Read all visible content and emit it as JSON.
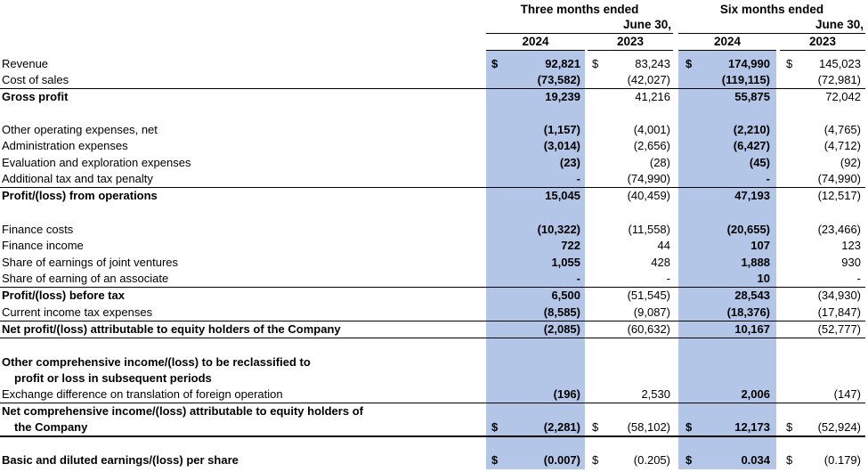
{
  "headers": {
    "three_months_line1": "Three months ended",
    "three_months_line2": "June 30,",
    "six_months_line1": "Six months ended",
    "six_months_line2": "June 30,",
    "years": [
      "2024",
      "2023",
      "2024",
      "2023"
    ]
  },
  "rows": {
    "revenue": {
      "label": "Revenue",
      "v": [
        "92,821",
        "83,243",
        "174,990",
        "145,023"
      ],
      "cur": [
        "$",
        "$",
        "$",
        "$"
      ]
    },
    "cost_of_sales": {
      "label": "Cost of sales",
      "v": [
        "(73,582)",
        "(42,027)",
        "(119,115)",
        "(72,981)"
      ]
    },
    "gross_profit": {
      "label": "Gross profit",
      "v": [
        "19,239",
        "41,216",
        "55,875",
        "72,042"
      ]
    },
    "other_opex": {
      "label": "Other operating expenses, net",
      "v": [
        "(1,157)",
        "(4,001)",
        "(2,210)",
        "(4,765)"
      ]
    },
    "admin": {
      "label": "Administration expenses",
      "v": [
        "(3,014)",
        "(2,656)",
        "(6,427)",
        "(4,712)"
      ]
    },
    "evaluation": {
      "label": "Evaluation and exploration expenses",
      "v": [
        "(23)",
        "(28)",
        "(45)",
        "(92)"
      ]
    },
    "additional_tax": {
      "label": "Additional tax and tax penalty",
      "v": [
        "-",
        "(74,990)",
        "-",
        "(74,990)"
      ]
    },
    "profit_ops": {
      "label": "Profit/(loss) from operations",
      "v": [
        "15,045",
        "(40,459)",
        "47,193",
        "(12,517)"
      ]
    },
    "finance_costs": {
      "label": "Finance costs",
      "v": [
        "(10,322)",
        "(11,558)",
        "(20,655)",
        "(23,466)"
      ]
    },
    "finance_income": {
      "label": "Finance income",
      "v": [
        "722",
        "44",
        "107",
        "123"
      ]
    },
    "jv_earnings": {
      "label": "Share of earnings of joint ventures",
      "v": [
        "1,055",
        "428",
        "1,888",
        "930"
      ]
    },
    "associate": {
      "label": "Share of earning of an associate",
      "v": [
        "-",
        "-",
        "10",
        "-"
      ]
    },
    "profit_before_tax": {
      "label": "Profit/(loss) before tax",
      "v": [
        "6,500",
        "(51,545)",
        "28,543",
        "(34,930)"
      ]
    },
    "current_tax": {
      "label": "Current income tax expenses",
      "v": [
        "(8,585)",
        "(9,087)",
        "(18,376)",
        "(17,847)"
      ]
    },
    "net_profit": {
      "label": "Net profit/(loss) attributable to equity holders of the Company",
      "v": [
        "(2,085)",
        "(60,632)",
        "10,167",
        "(52,777)"
      ]
    },
    "oci_heading_line1": "Other comprehensive income/(loss) to be reclassified to",
    "oci_heading_line2": "profit or loss in subsequent periods",
    "exchange_diff": {
      "label": "Exchange difference on translation of foreign operation",
      "v": [
        "(196)",
        "2,530",
        "2,006",
        "(147)"
      ]
    },
    "net_comprehensive": {
      "label_line1": "Net comprehensive income/(loss) attributable to equity holders of",
      "label_line2": "the Company",
      "v": [
        "(2,281)",
        "(58,102)",
        "12,173",
        "(52,924)"
      ],
      "cur": [
        "$",
        "$",
        "$",
        "$"
      ]
    },
    "eps": {
      "label": "Basic and diluted earnings/(loss) per share",
      "v": [
        "(0.007)",
        "(0.205)",
        "0.034",
        "(0.179)"
      ],
      "cur": [
        "$",
        "$",
        "$",
        "$"
      ]
    }
  },
  "colors": {
    "highlight": "#b4c6e7"
  }
}
